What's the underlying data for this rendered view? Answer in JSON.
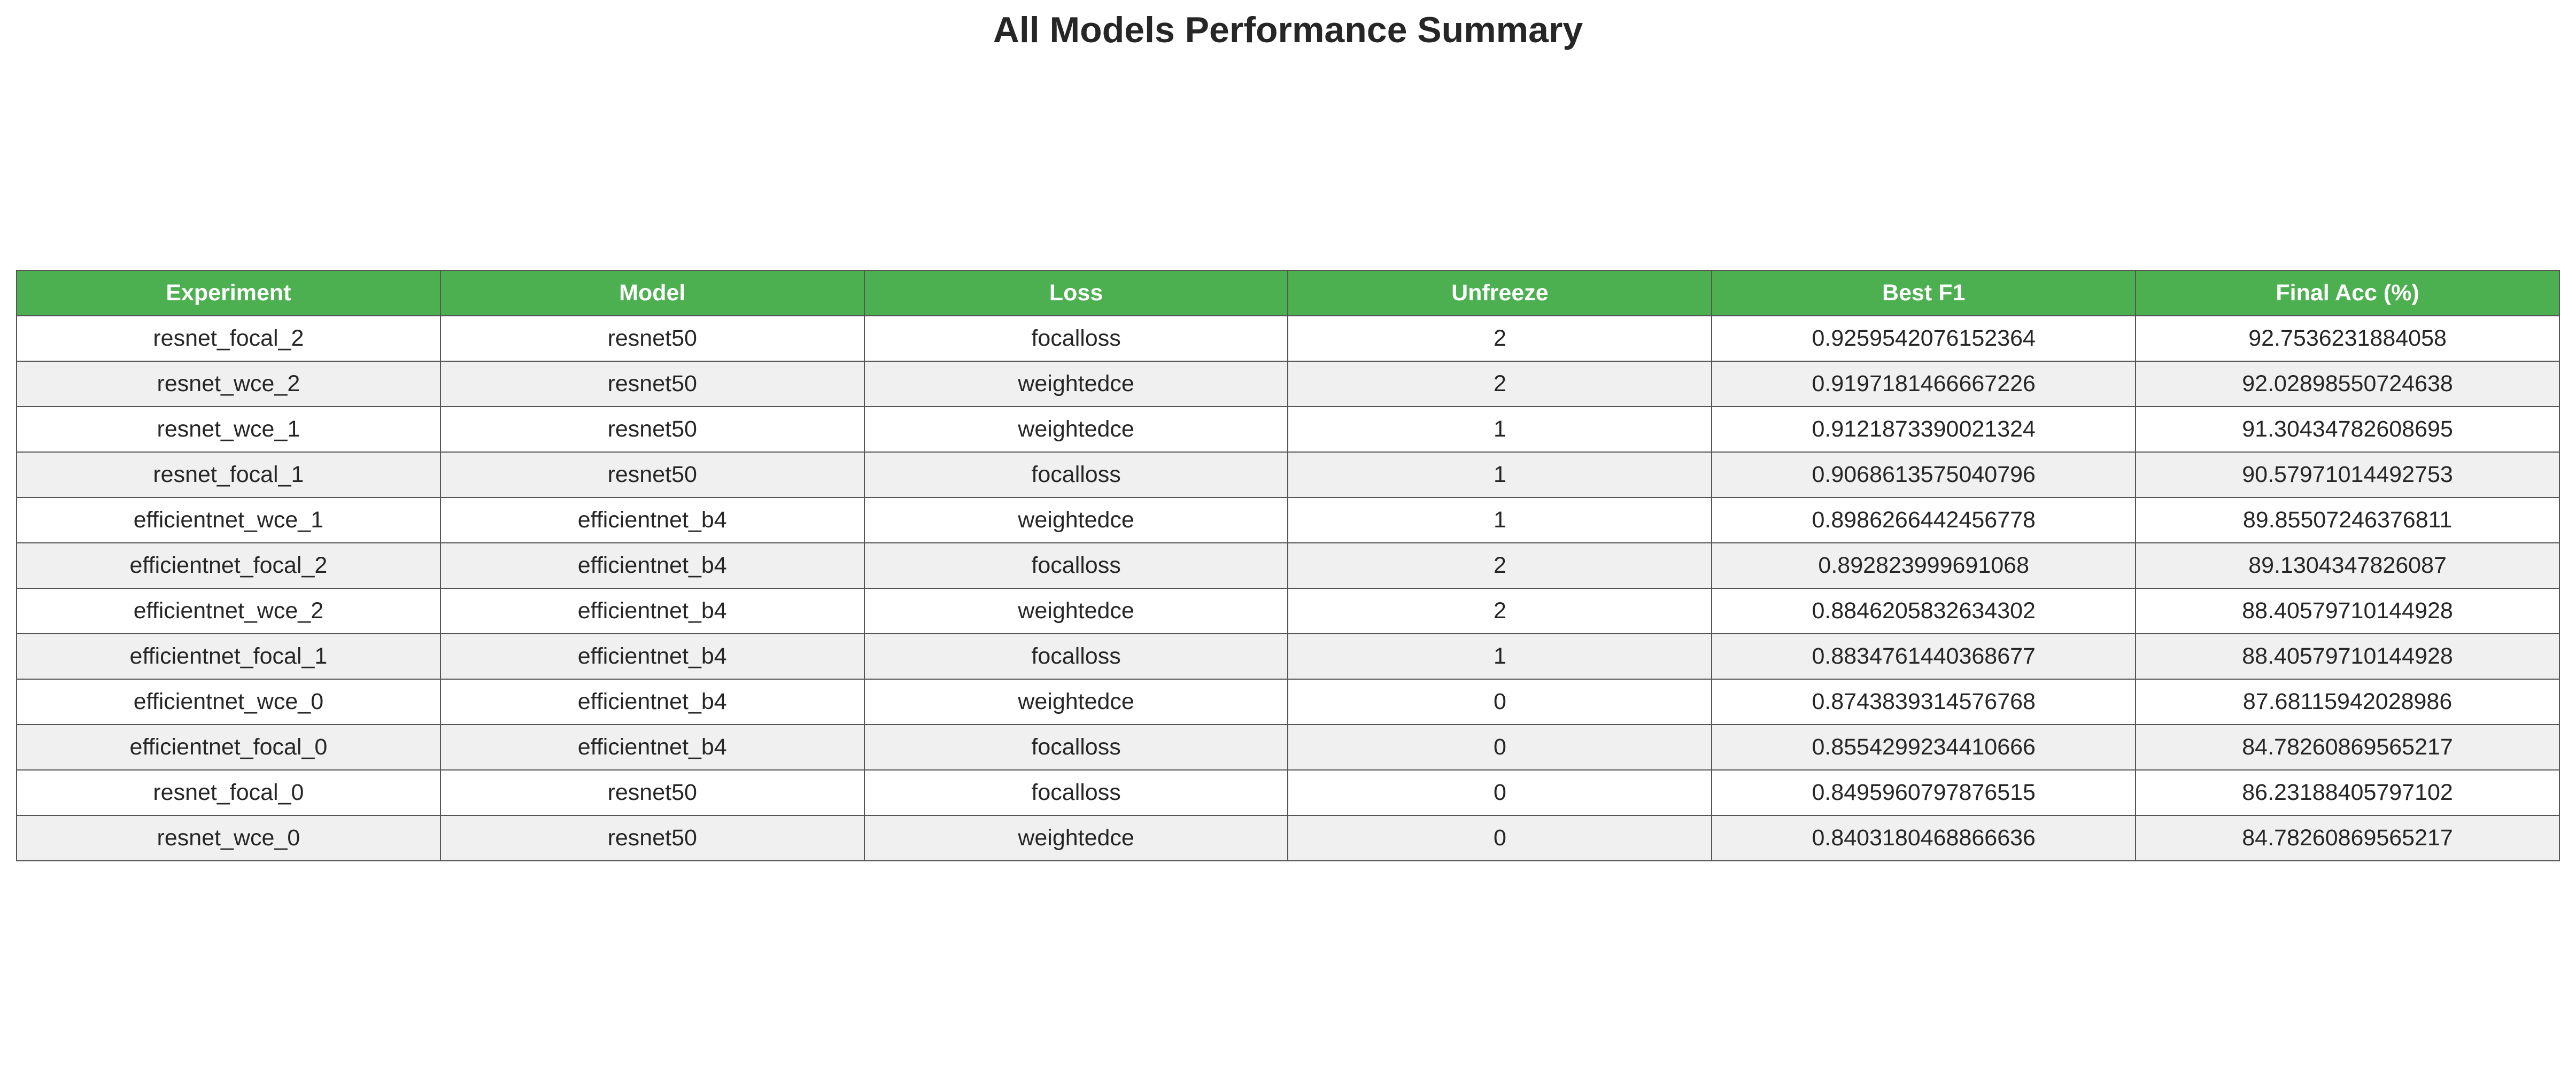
{
  "title": "All Models Performance Summary",
  "chart_data": {
    "type": "table",
    "title": "All Models Performance Summary",
    "columns": [
      "Experiment",
      "Model",
      "Loss",
      "Unfreeze",
      "Best F1",
      "Final Acc (%)"
    ],
    "rows": [
      [
        "resnet_focal_2",
        "resnet50",
        "focalloss",
        "2",
        "0.9259542076152364",
        "92.7536231884058"
      ],
      [
        "resnet_wce_2",
        "resnet50",
        "weightedce",
        "2",
        "0.9197181466667226",
        "92.02898550724638"
      ],
      [
        "resnet_wce_1",
        "resnet50",
        "weightedce",
        "1",
        "0.9121873390021324",
        "91.30434782608695"
      ],
      [
        "resnet_focal_1",
        "resnet50",
        "focalloss",
        "1",
        "0.9068613575040796",
        "90.57971014492753"
      ],
      [
        "efficientnet_wce_1",
        "efficientnet_b4",
        "weightedce",
        "1",
        "0.8986266442456778",
        "89.85507246376811"
      ],
      [
        "efficientnet_focal_2",
        "efficientnet_b4",
        "focalloss",
        "2",
        "0.892823999691068",
        "89.1304347826087"
      ],
      [
        "efficientnet_wce_2",
        "efficientnet_b4",
        "weightedce",
        "2",
        "0.8846205832634302",
        "88.40579710144928"
      ],
      [
        "efficientnet_focal_1",
        "efficientnet_b4",
        "focalloss",
        "1",
        "0.8834761440368677",
        "88.40579710144928"
      ],
      [
        "efficientnet_wce_0",
        "efficientnet_b4",
        "weightedce",
        "0",
        "0.8743839314576768",
        "87.68115942028986"
      ],
      [
        "efficientnet_focal_0",
        "efficientnet_b4",
        "focalloss",
        "0",
        "0.8554299234410666",
        "84.78260869565217"
      ],
      [
        "resnet_focal_0",
        "resnet50",
        "focalloss",
        "0",
        "0.8495960797876515",
        "86.23188405797102"
      ],
      [
        "resnet_wce_0",
        "resnet50",
        "weightedce",
        "0",
        "0.8403180468866636",
        "84.78260869565217"
      ]
    ],
    "colors": {
      "header_background": "#4caf50",
      "header_text": "#ffffff",
      "row_alt_background": "#f0f0f0",
      "row_background": "#ffffff",
      "border": "#555555"
    }
  }
}
